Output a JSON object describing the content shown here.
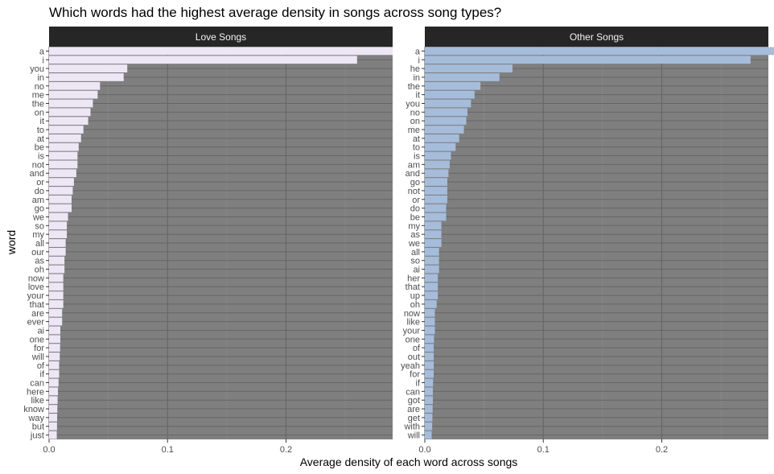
{
  "chart_data": {
    "type": "bar",
    "orientation": "horizontal",
    "title": "Which words had the highest average density in songs across song types?",
    "xlabel": "Average density of each word across songs",
    "ylabel": "word",
    "xlim": [
      0,
      0.29
    ],
    "xticks": [
      "0.0",
      "0.1",
      "0.2"
    ],
    "xtick_values": [
      0,
      0.1,
      0.2
    ],
    "grid": true,
    "panel_background": "#7f7f7f",
    "strip_background": "#262626",
    "panels": [
      {
        "name": "Love Songs",
        "color": "#ede6f5",
        "categories": [
          "a",
          "i",
          "you",
          "in",
          "no",
          "me",
          "the",
          "on",
          "it",
          "to",
          "at",
          "be",
          "is",
          "not",
          "and",
          "or",
          "do",
          "am",
          "go",
          "we",
          "so",
          "my",
          "all",
          "our",
          "as",
          "oh",
          "now",
          "love",
          "your",
          "that",
          "are",
          "ever",
          "ai",
          "one",
          "for",
          "will",
          "of",
          "if",
          "can",
          "here",
          "like",
          "know",
          "way",
          "but",
          "just"
        ],
        "values": [
          0.29,
          0.26,
          0.066,
          0.063,
          0.043,
          0.041,
          0.037,
          0.035,
          0.033,
          0.029,
          0.027,
          0.025,
          0.024,
          0.024,
          0.023,
          0.021,
          0.02,
          0.019,
          0.019,
          0.016,
          0.015,
          0.015,
          0.014,
          0.014,
          0.013,
          0.013,
          0.012,
          0.012,
          0.012,
          0.012,
          0.011,
          0.011,
          0.0095,
          0.0095,
          0.0093,
          0.009,
          0.0085,
          0.0085,
          0.008,
          0.0075,
          0.0072,
          0.007,
          0.0068,
          0.0067,
          0.0065
        ]
      },
      {
        "name": "Other Songs",
        "color": "#a6bcdb",
        "categories": [
          "a",
          "i",
          "he",
          "in",
          "the",
          "it",
          "you",
          "no",
          "on",
          "me",
          "at",
          "to",
          "is",
          "am",
          "and",
          "go",
          "not",
          "or",
          "do",
          "be",
          "my",
          "as",
          "we",
          "all",
          "so",
          "ai",
          "her",
          "that",
          "up",
          "oh",
          "now",
          "like",
          "your",
          "one",
          "of",
          "out",
          "yeah",
          "for",
          "if",
          "can",
          "got",
          "are",
          "get",
          "with",
          "will"
        ],
        "values": [
          0.295,
          0.275,
          0.074,
          0.063,
          0.047,
          0.042,
          0.039,
          0.036,
          0.035,
          0.033,
          0.029,
          0.026,
          0.022,
          0.021,
          0.02,
          0.019,
          0.019,
          0.019,
          0.018,
          0.018,
          0.014,
          0.014,
          0.014,
          0.012,
          0.012,
          0.012,
          0.011,
          0.011,
          0.011,
          0.01,
          0.0085,
          0.0085,
          0.0085,
          0.0078,
          0.0075,
          0.0075,
          0.0075,
          0.0075,
          0.007,
          0.0068,
          0.0068,
          0.0066,
          0.0064,
          0.0062,
          0.0058
        ]
      }
    ]
  }
}
